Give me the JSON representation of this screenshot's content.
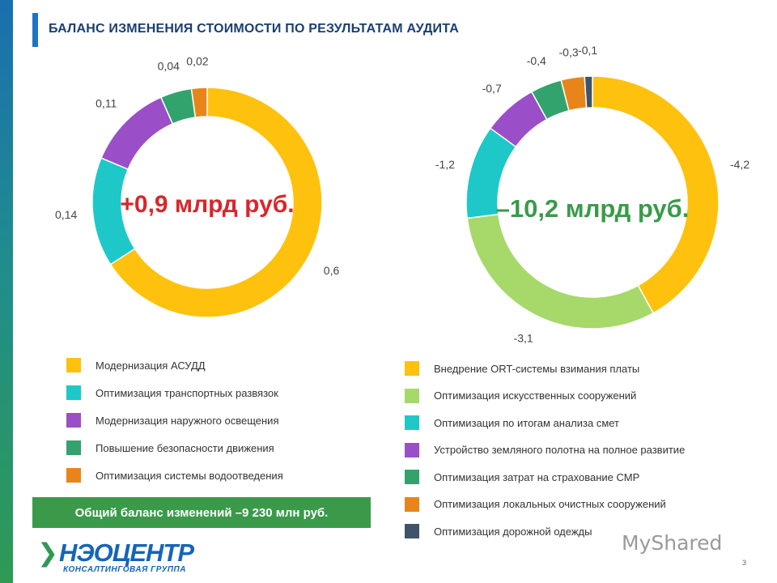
{
  "title": "БАЛАНС ИЗМЕНЕНИЯ СТОИМОСТИ ПО РЕЗУЛЬТАТАМ АУДИТА",
  "chart_data": [
    {
      "type": "pie",
      "variant": "donut",
      "center_text": "+0,9 млрд руб.",
      "center_color": "#d9262b",
      "start": "top, clockwise",
      "slices": [
        {
          "name": "Модернизация АСУДД",
          "value": 0.6,
          "label": "0,6",
          "color": "#fec20e"
        },
        {
          "name": "Оптимизация транспортных развязок",
          "value": 0.14,
          "label": "0,14",
          "color": "#1ec8c8"
        },
        {
          "name": "Модернизация наружного освещения",
          "value": 0.11,
          "label": "0,11",
          "color": "#9a4fc8"
        },
        {
          "name": "Повышение безопасности движения",
          "value": 0.04,
          "label": "0,04",
          "color": "#33a36d"
        },
        {
          "name": "Оптимизация системы водоотведения",
          "value": 0.02,
          "label": "0,02",
          "color": "#e8851a"
        }
      ]
    },
    {
      "type": "pie",
      "variant": "donut",
      "center_text": "–10,2 млрд руб.",
      "center_color": "#3a9a4a",
      "start": "top, clockwise",
      "slices": [
        {
          "name": "Внедрение ORT-системы взимания платы",
          "value": -4.2,
          "label": "-4,2",
          "color": "#fec20e"
        },
        {
          "name": "Оптимизация искусственных сооружений",
          "value": -3.1,
          "label": "-3,1",
          "color": "#a6d96a"
        },
        {
          "name": "Оптимизация по итогам анализа смет",
          "value": -1.2,
          "label": "-1,2",
          "color": "#1ec8c8"
        },
        {
          "name": "Устройство земляного полотна на полное развитие",
          "value": -0.7,
          "label": "-0,7",
          "color": "#9a4fc8"
        },
        {
          "name": "Оптимизация затрат на страхование СМР",
          "value": -0.4,
          "label": "-0,4",
          "color": "#33a36d"
        },
        {
          "name": "Оптимизация локальных очистных сооружений",
          "value": -0.3,
          "label": "-0,3",
          "color": "#e8851a"
        },
        {
          "name": "Оптимизация дорожной одежды",
          "value": -0.1,
          "label": "-0,1",
          "color": "#3f5468"
        }
      ]
    }
  ],
  "total": "Общий баланс изменений –9 230 млн руб.",
  "logo": {
    "brand": "НЭОЦЕНТР",
    "subtitle": "КОНСАЛТИНГОВАЯ ГРУППА"
  },
  "watermark": "MyShared",
  "page_number": "3"
}
